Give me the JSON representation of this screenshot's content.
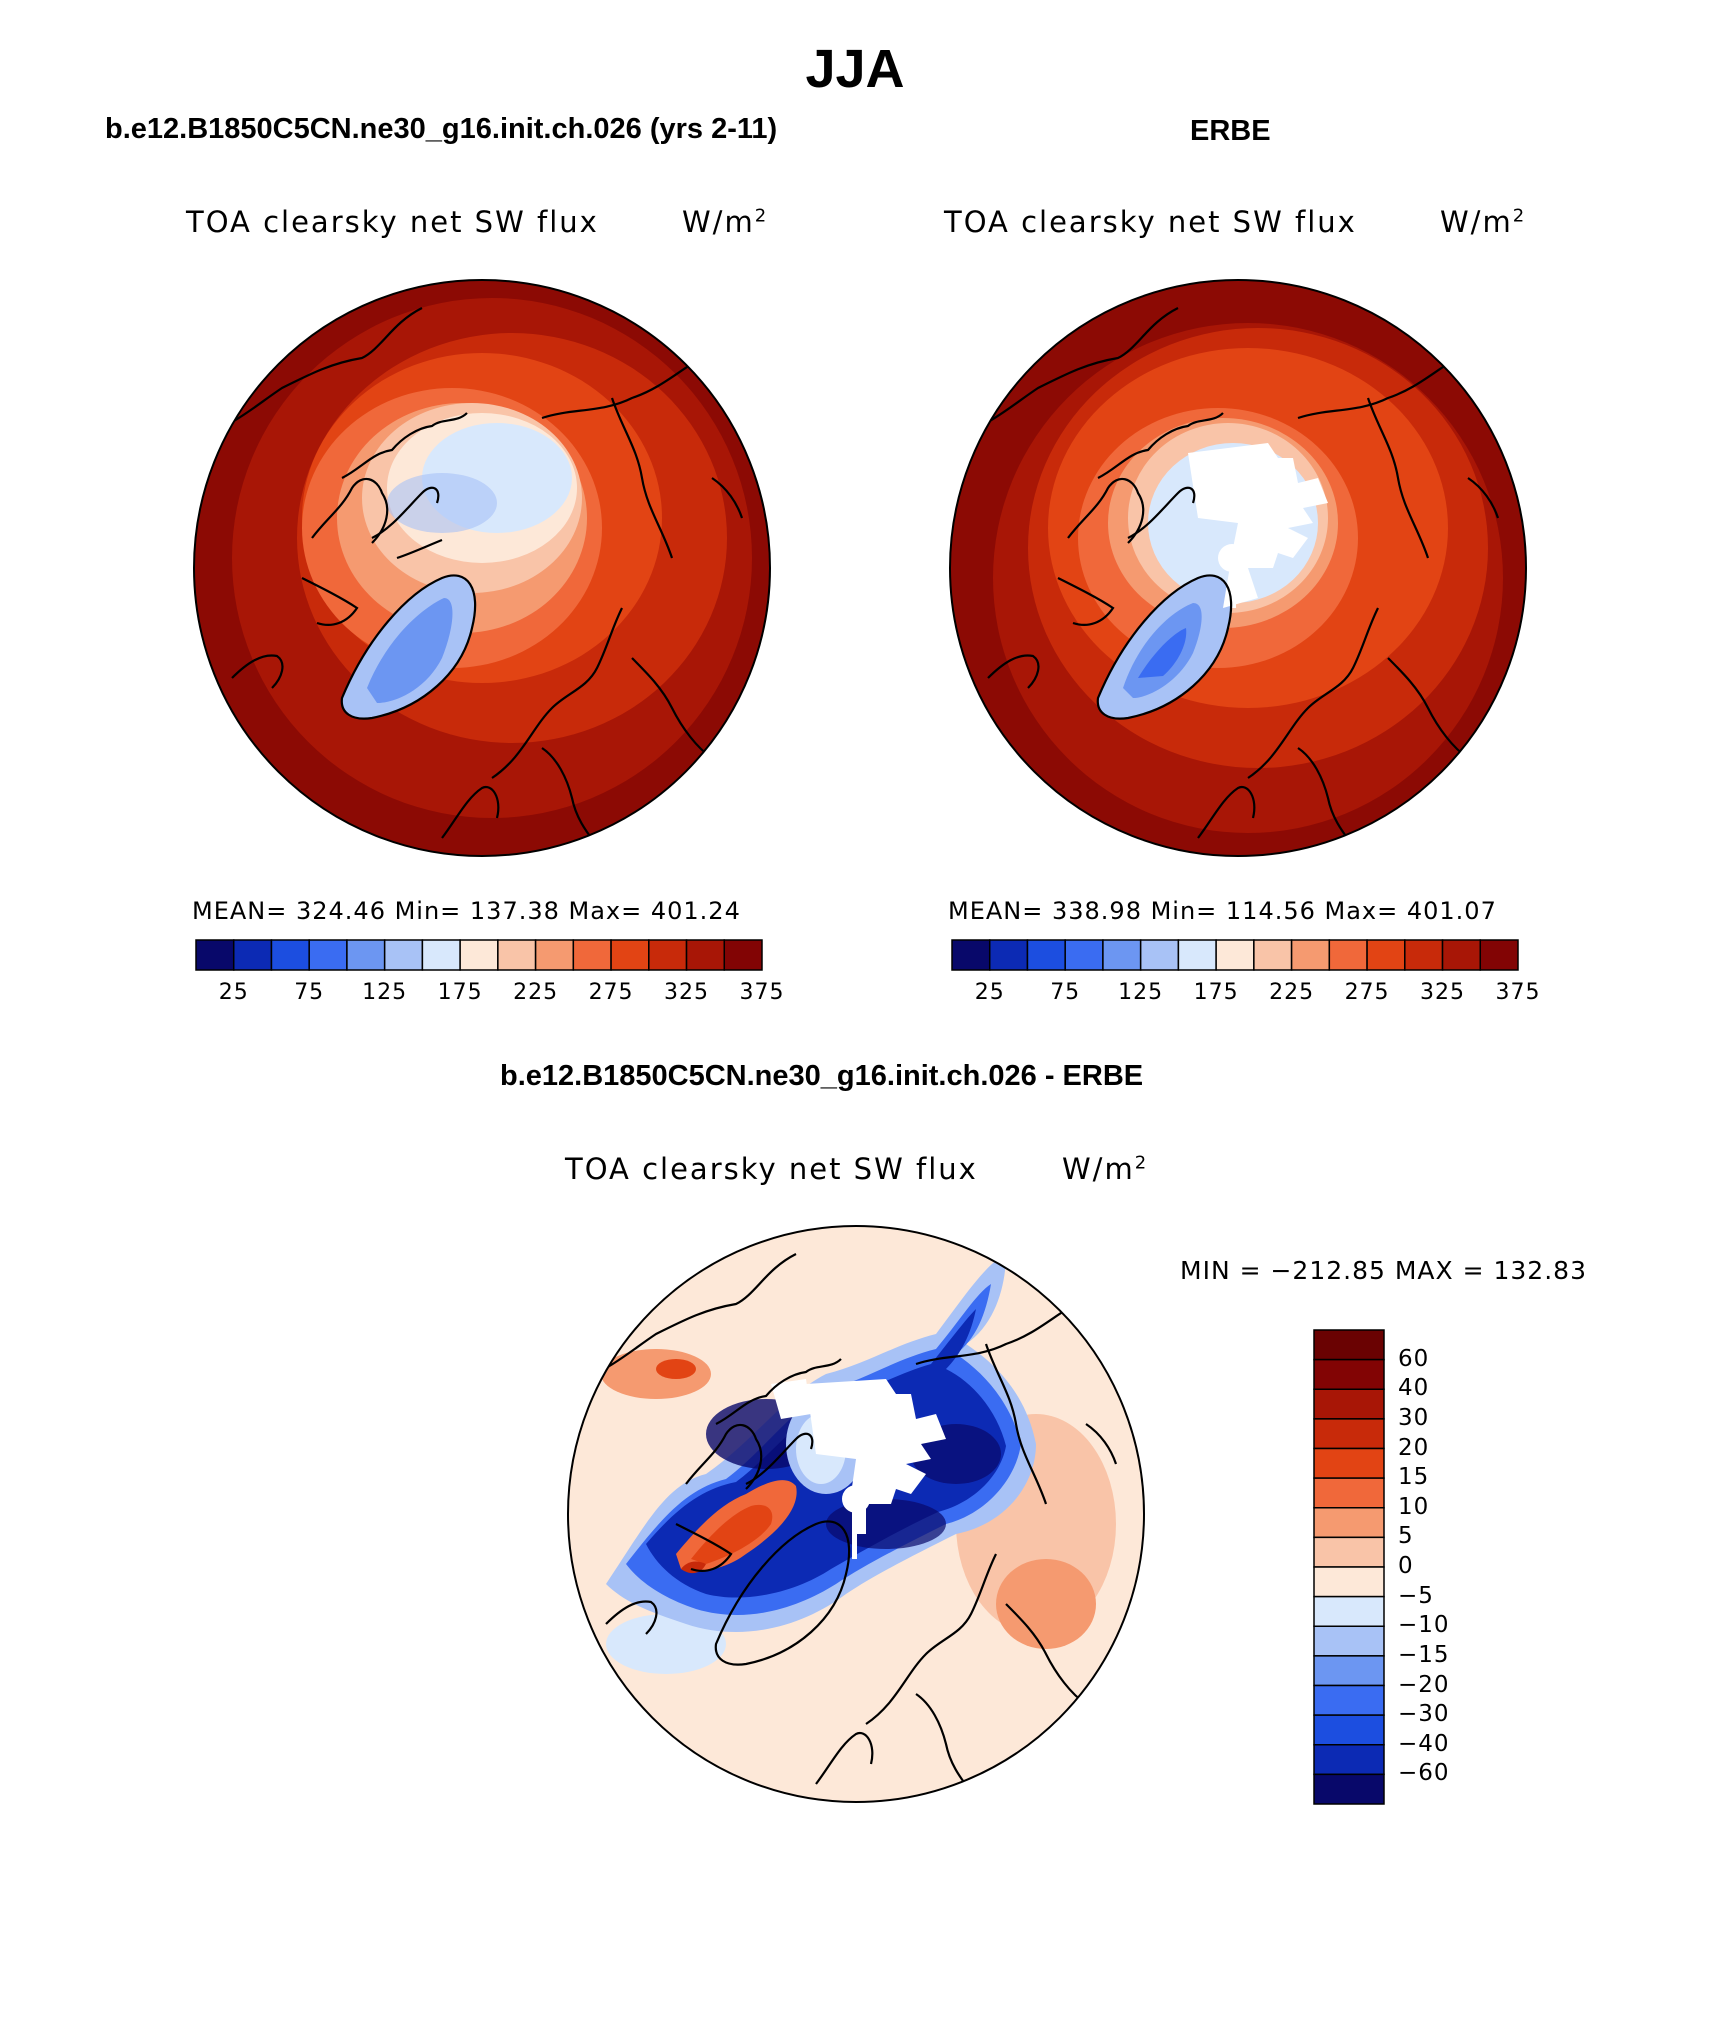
{
  "title": "JJA",
  "panels": {
    "model": {
      "case_title": "b.e12.B1850C5CN.ne30_g16.init.ch.026 (yrs 2-11)",
      "var_title": "TOA clearsky net SW flux",
      "units_base": "W/m",
      "units_exp": "2",
      "stats": "MEAN= 324.46   Min= 137.38   Max= 401.24",
      "colorbar_ticks": [
        "25",
        "75",
        "125",
        "175",
        "225",
        "275",
        "325",
        "375"
      ]
    },
    "obs": {
      "case_title": "ERBE",
      "var_title": "TOA clearsky net SW flux",
      "units_base": "W/m",
      "units_exp": "2",
      "stats": "MEAN= 338.98   Min= 114.56   Max= 401.07",
      "colorbar_ticks": [
        "25",
        "75",
        "125",
        "175",
        "225",
        "275",
        "325",
        "375"
      ]
    },
    "diff": {
      "case_title": "b.e12.B1850C5CN.ne30_g16.init.ch.026 - ERBE",
      "var_title": "TOA clearsky net SW flux",
      "units_base": "W/m",
      "units_exp": "2",
      "minmax": "MIN = −212.85 MAX = 132.83",
      "colorbar_ticks": [
        "60",
        "40",
        "30",
        "20",
        "15",
        "10",
        "5",
        "0",
        "−5",
        "−10",
        "−15",
        "−20",
        "−30",
        "−40",
        "−60"
      ]
    }
  },
  "colors": {
    "abs_scale": [
      "#08086a",
      "#0c2ab4",
      "#1c4ee0",
      "#3a6cf2",
      "#6c96f2",
      "#a8c2f6",
      "#d8e8fc",
      "#fde8d8",
      "#f9c4a8",
      "#f59a70",
      "#f0683a",
      "#e24414",
      "#c82a0a",
      "#a81606",
      "#820404"
    ],
    "diff_scale": [
      "#08086a",
      "#0c2ab4",
      "#1c4ee0",
      "#3a6cf2",
      "#6c96f2",
      "#a8c2f6",
      "#d8e8fc",
      "#fde8d8",
      "#f9c4a8",
      "#f59a70",
      "#f0683a",
      "#e24414",
      "#c82a0a",
      "#a81606",
      "#820404",
      "#6a0202"
    ]
  }
}
